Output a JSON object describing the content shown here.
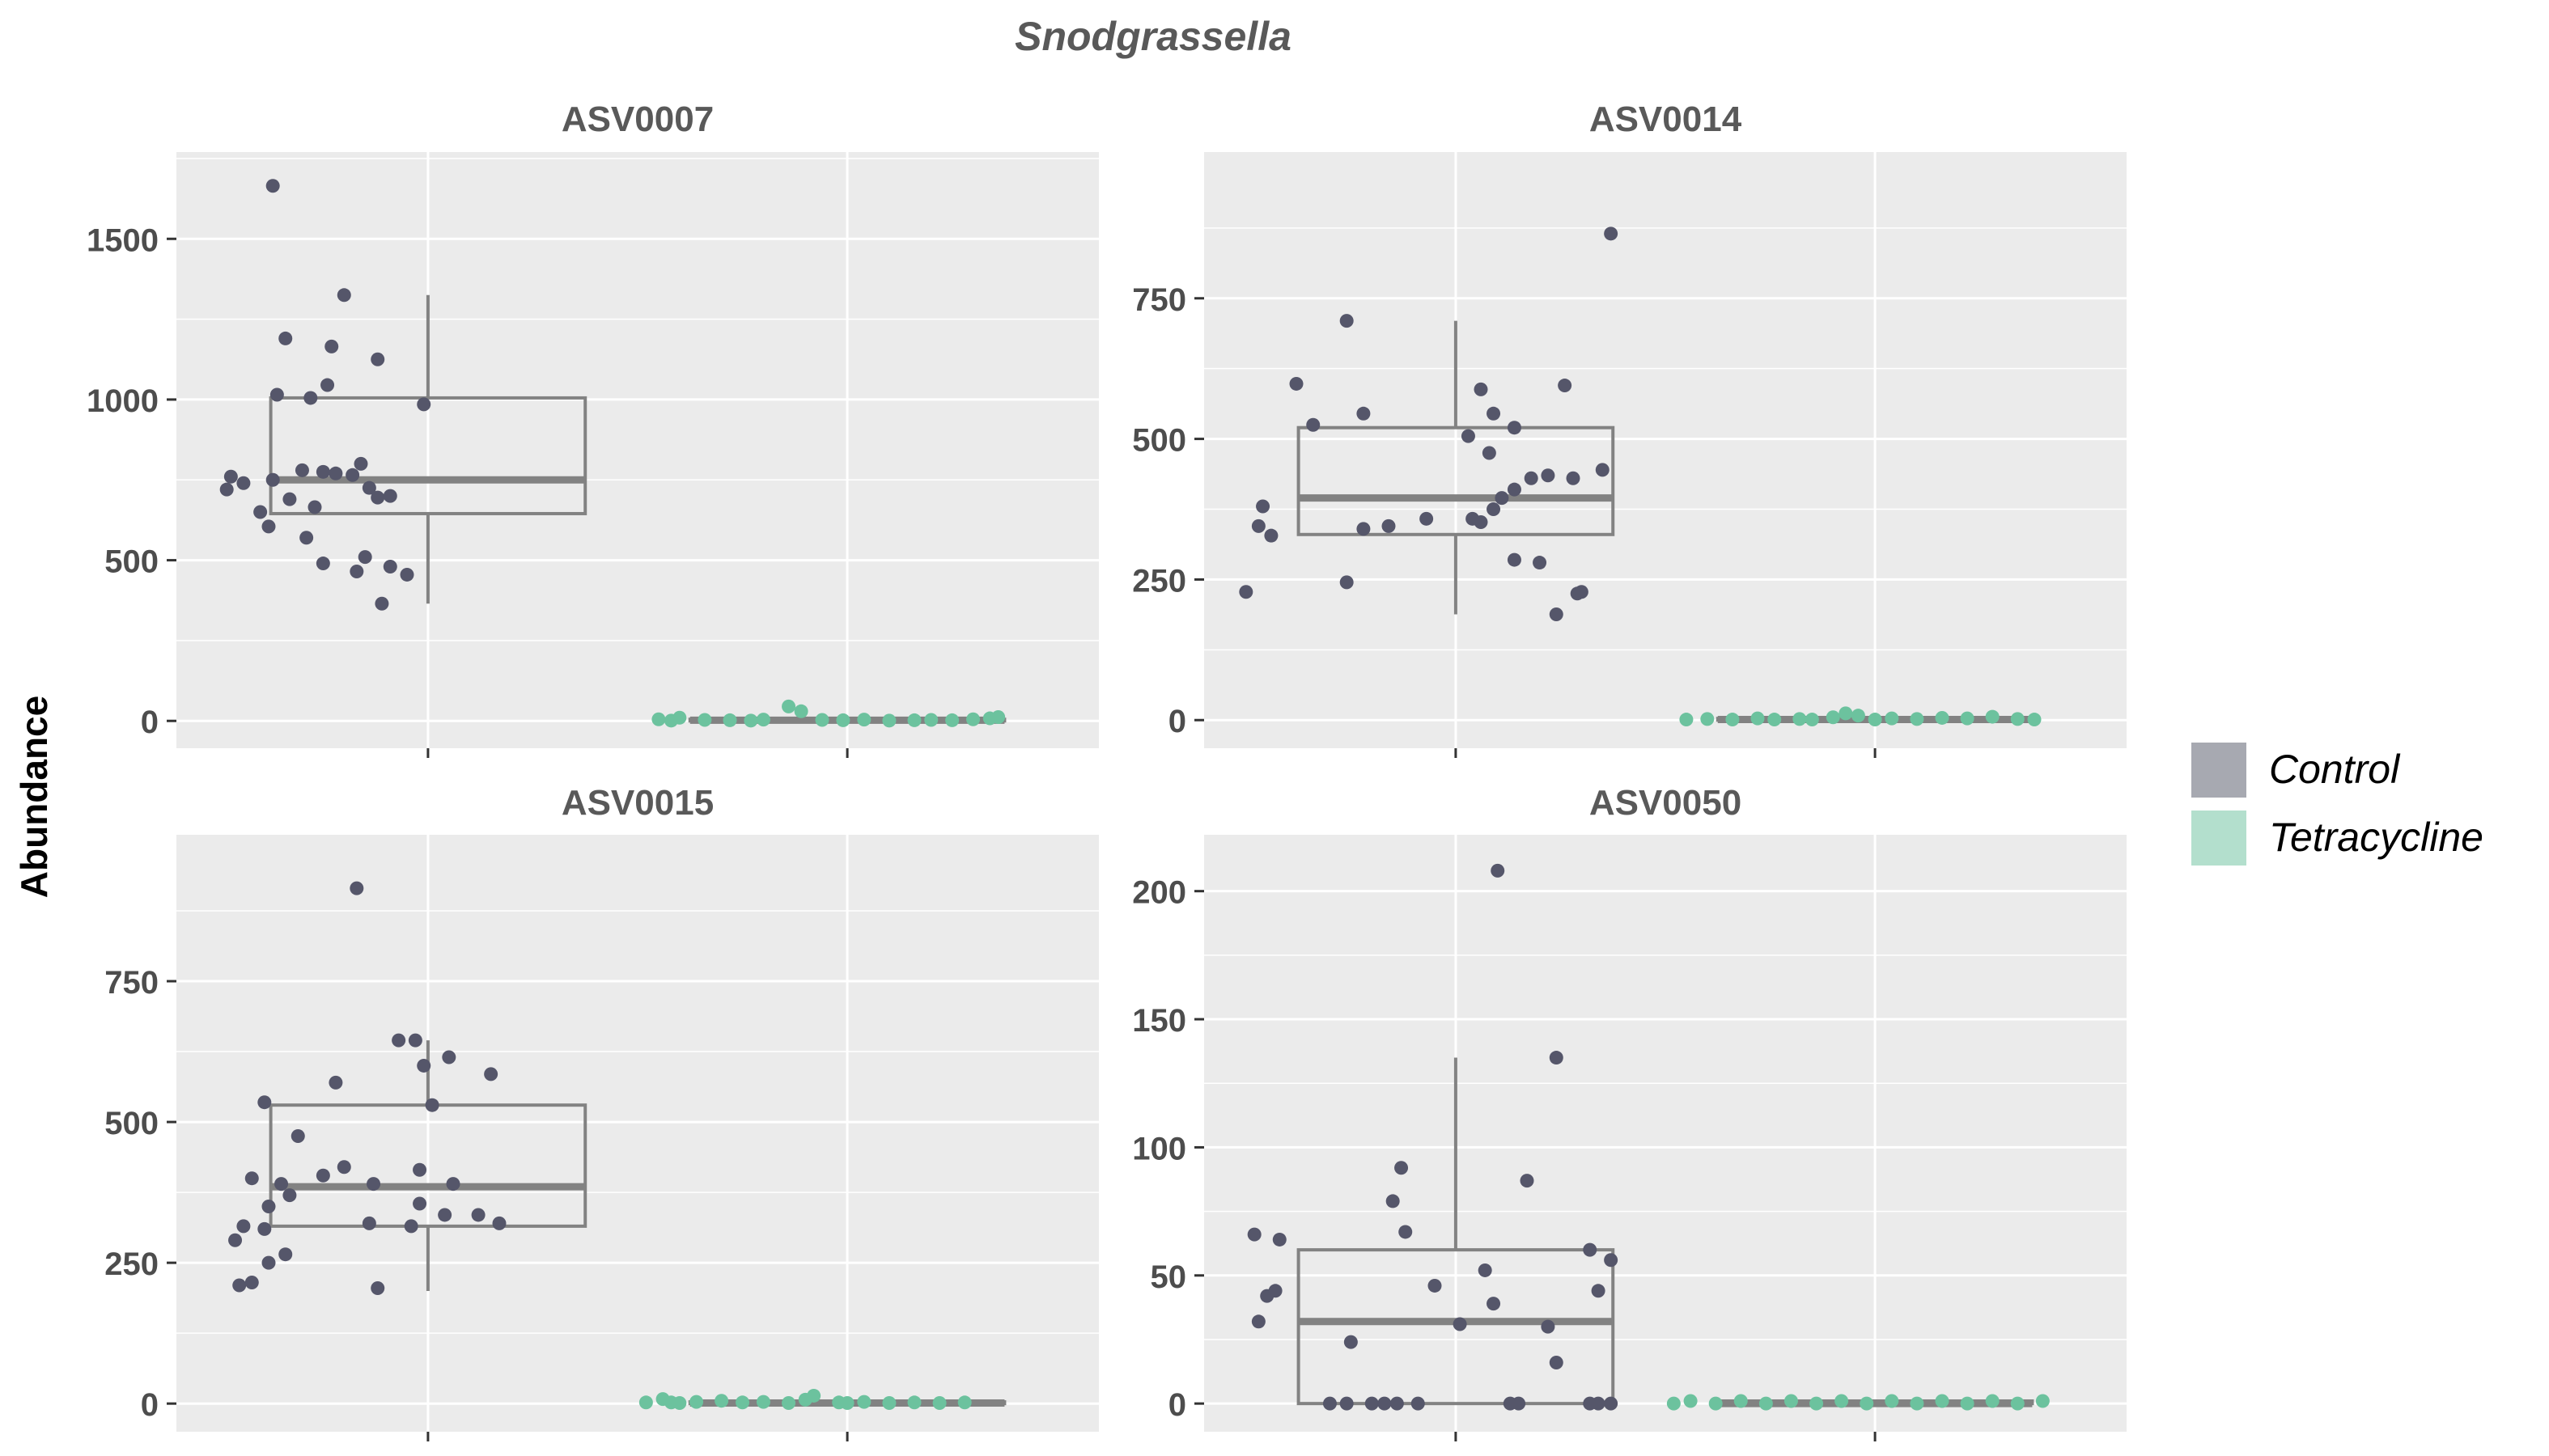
{
  "chart_data": {
    "type": "box",
    "title": "Snodgrassella",
    "ylabel": "Abundance",
    "legend": {
      "position": "right",
      "entries": [
        {
          "label": "Control",
          "color": "#a7a9b1"
        },
        {
          "label": "Tetracycline",
          "color": "#b3dfcd"
        }
      ]
    },
    "colors": {
      "control_points": "#55566a",
      "tetra_points": "#6cc29e",
      "box": "#828282",
      "panel_bg": "#ebebeb",
      "grid": "#ffffff"
    },
    "categories": [
      "Control",
      "Tetracycline"
    ],
    "panels": [
      {
        "title": "ASV0007",
        "ylim": [
          -85,
          1770
        ],
        "yticks": [
          0,
          500,
          1000,
          1500
        ],
        "boxes": [
          {
            "group": "Control",
            "q1": 645,
            "median": 750,
            "q3": 1005,
            "whisker_low": 365,
            "whisker_high": 1325
          },
          {
            "group": "Tetracycline",
            "q1": 0,
            "median": 2,
            "q3": 5,
            "whisker_low": 0,
            "whisker_high": 10
          }
        ],
        "points": {
          "Control": [
            [
              0.63,
              1665
            ],
            [
              0.66,
              1190
            ],
            [
              0.64,
              1015
            ],
            [
              0.77,
              1165
            ],
            [
              0.8,
              1325
            ],
            [
              0.76,
              1045
            ],
            [
              0.72,
              1005
            ],
            [
              0.88,
              1125
            ],
            [
              0.99,
              985
            ],
            [
              0.53,
              760
            ],
            [
              0.56,
              740
            ],
            [
              0.52,
              720
            ],
            [
              0.63,
              750
            ],
            [
              0.7,
              780
            ],
            [
              0.75,
              775
            ],
            [
              0.78,
              770
            ],
            [
              0.84,
              800
            ],
            [
              0.82,
              765
            ],
            [
              0.86,
              725
            ],
            [
              0.88,
              695
            ],
            [
              0.91,
              700
            ],
            [
              0.67,
              690
            ],
            [
              0.6,
              650
            ],
            [
              0.73,
              665
            ],
            [
              0.62,
              605
            ],
            [
              0.71,
              570
            ],
            [
              0.75,
              490
            ],
            [
              0.85,
              510
            ],
            [
              0.83,
              465
            ],
            [
              0.91,
              480
            ],
            [
              0.95,
              455
            ],
            [
              0.89,
              365
            ]
          ],
          "Tetracycline": [
            [
              1.55,
              5
            ],
            [
              1.6,
              10
            ],
            [
              1.66,
              3
            ],
            [
              1.72,
              2
            ],
            [
              1.8,
              4
            ],
            [
              1.86,
              45
            ],
            [
              1.89,
              30
            ],
            [
              1.94,
              3
            ],
            [
              1.99,
              2
            ],
            [
              2.04,
              4
            ],
            [
              2.1,
              1
            ],
            [
              2.16,
              2
            ],
            [
              2.2,
              3
            ],
            [
              2.25,
              2
            ],
            [
              2.3,
              5
            ],
            [
              2.34,
              8
            ],
            [
              2.36,
              12
            ],
            [
              1.58,
              1
            ],
            [
              1.77,
              1
            ]
          ]
        }
      },
      {
        "title": "ASV0014",
        "ylim": [
          -50,
          1010
        ],
        "yticks": [
          0,
          250,
          500,
          750
        ],
        "boxes": [
          {
            "group": "Control",
            "q1": 330,
            "median": 395,
            "q3": 520,
            "whisker_low": 188,
            "whisker_high": 710
          },
          {
            "group": "Tetracycline",
            "q1": 0,
            "median": 1,
            "q3": 3,
            "whisker_low": 0,
            "whisker_high": 6
          }
        ],
        "points": {
          "Control": [
            [
              1.37,
              865
            ],
            [
              0.74,
              710
            ],
            [
              0.62,
              598
            ],
            [
              0.66,
              525
            ],
            [
              0.78,
              545
            ],
            [
              1.06,
              588
            ],
            [
              1.09,
              545
            ],
            [
              1.14,
              520
            ],
            [
              1.26,
              595
            ],
            [
              0.54,
              380
            ],
            [
              0.53,
              345
            ],
            [
              0.56,
              328
            ],
            [
              1.03,
              505
            ],
            [
              1.08,
              475
            ],
            [
              1.18,
              430
            ],
            [
              1.22,
              435
            ],
            [
              1.28,
              430
            ],
            [
              1.35,
              445
            ],
            [
              1.14,
              410
            ],
            [
              1.11,
              395
            ],
            [
              1.09,
              375
            ],
            [
              0.78,
              340
            ],
            [
              0.84,
              345
            ],
            [
              0.93,
              358
            ],
            [
              1.04,
              358
            ],
            [
              1.06,
              352
            ],
            [
              0.74,
              245
            ],
            [
              1.14,
              285
            ],
            [
              1.2,
              280
            ],
            [
              1.29,
              225
            ],
            [
              1.3,
              228
            ],
            [
              0.5,
              228
            ],
            [
              1.24,
              188
            ]
          ],
          "Tetracycline": [
            [
              1.55,
              1
            ],
            [
              1.6,
              2
            ],
            [
              1.66,
              1
            ],
            [
              1.72,
              3
            ],
            [
              1.76,
              1
            ],
            [
              1.82,
              2
            ],
            [
              1.9,
              5
            ],
            [
              1.93,
              12
            ],
            [
              1.96,
              8
            ],
            [
              2.04,
              3
            ],
            [
              2.1,
              2
            ],
            [
              2.16,
              4
            ],
            [
              2.22,
              3
            ],
            [
              2.28,
              6
            ],
            [
              2.34,
              2
            ],
            [
              2.38,
              1
            ],
            [
              1.85,
              1
            ],
            [
              2.0,
              1
            ]
          ]
        }
      },
      {
        "title": "ASV0015",
        "ylim": [
          -50,
          1010
        ],
        "yticks": [
          0,
          250,
          500,
          750
        ],
        "boxes": [
          {
            "group": "Control",
            "q1": 315,
            "median": 385,
            "q3": 530,
            "whisker_low": 200,
            "whisker_high": 645
          },
          {
            "group": "Tetracycline",
            "q1": 0,
            "median": 1,
            "q3": 3,
            "whisker_low": 0,
            "whisker_high": 6
          }
        ],
        "points": {
          "Control": [
            [
              0.83,
              915
            ],
            [
              0.78,
              570
            ],
            [
              0.61,
              535
            ],
            [
              0.93,
              645
            ],
            [
              0.97,
              645
            ],
            [
              0.99,
              600
            ],
            [
              1.05,
              615
            ],
            [
              1.15,
              585
            ],
            [
              0.69,
              475
            ],
            [
              0.54,
              290
            ],
            [
              0.58,
              400
            ],
            [
              0.56,
              315
            ],
            [
              0.61,
              310
            ],
            [
              0.62,
              250
            ],
            [
              0.66,
              265
            ],
            [
              0.65,
              390
            ],
            [
              0.67,
              370
            ],
            [
              0.62,
              350
            ],
            [
              0.75,
              405
            ],
            [
              0.8,
              420
            ],
            [
              0.87,
              390
            ],
            [
              0.98,
              415
            ],
            [
              1.06,
              390
            ],
            [
              1.04,
              335
            ],
            [
              1.12,
              335
            ],
            [
              1.17,
              320
            ],
            [
              0.86,
              320
            ],
            [
              0.96,
              315
            ],
            [
              0.98,
              355
            ],
            [
              1.01,
              530
            ],
            [
              0.55,
              210
            ],
            [
              0.58,
              215
            ],
            [
              0.88,
              205
            ]
          ],
          "Tetracycline": [
            [
              1.52,
              2
            ],
            [
              1.56,
              8
            ],
            [
              1.6,
              1
            ],
            [
              1.64,
              3
            ],
            [
              1.7,
              5
            ],
            [
              1.75,
              2
            ],
            [
              1.8,
              3
            ],
            [
              1.86,
              1
            ],
            [
              1.9,
              7
            ],
            [
              1.92,
              14
            ],
            [
              1.98,
              2
            ],
            [
              2.04,
              3
            ],
            [
              2.1,
              1
            ],
            [
              2.16,
              2
            ],
            [
              2.22,
              1
            ],
            [
              2.28,
              2
            ],
            [
              1.58,
              2
            ],
            [
              2.0,
              1
            ]
          ]
        }
      },
      {
        "title": "ASV0050",
        "ylim": [
          -11,
          222
        ],
        "yticks": [
          0,
          50,
          100,
          150,
          200
        ],
        "boxes": [
          {
            "group": "Control",
            "q1": 0,
            "median": 32,
            "q3": 60,
            "whisker_low": 0,
            "whisker_high": 135
          },
          {
            "group": "Tetracycline",
            "q1": 0,
            "median": 0,
            "q3": 1,
            "whisker_low": 0,
            "whisker_high": 1
          }
        ],
        "points": {
          "Control": [
            [
              1.1,
              208
            ],
            [
              1.24,
              135
            ],
            [
              0.87,
              92
            ],
            [
              0.85,
              79
            ],
            [
              1.17,
              87
            ],
            [
              0.88,
              67
            ],
            [
              0.52,
              66
            ],
            [
              0.58,
              64
            ],
            [
              1.32,
              60
            ],
            [
              1.37,
              56
            ],
            [
              0.95,
              46
            ],
            [
              1.07,
              52
            ],
            [
              0.55,
              42
            ],
            [
              0.57,
              44
            ],
            [
              1.34,
              44
            ],
            [
              1.09,
              39
            ],
            [
              0.75,
              24
            ],
            [
              1.22,
              30
            ],
            [
              1.01,
              31
            ],
            [
              0.53,
              32
            ],
            [
              1.24,
              16
            ],
            [
              0.7,
              0
            ],
            [
              0.74,
              0
            ],
            [
              0.8,
              0
            ],
            [
              0.83,
              0
            ],
            [
              0.86,
              0
            ],
            [
              0.91,
              0
            ],
            [
              1.13,
              0
            ],
            [
              1.15,
              0
            ],
            [
              1.32,
              0
            ],
            [
              1.34,
              0
            ],
            [
              1.37,
              0
            ]
          ],
          "Tetracycline": [
            [
              1.52,
              0
            ],
            [
              1.56,
              1
            ],
            [
              1.62,
              0
            ],
            [
              1.68,
              1
            ],
            [
              1.74,
              0
            ],
            [
              1.8,
              1
            ],
            [
              1.86,
              0
            ],
            [
              1.92,
              1
            ],
            [
              1.98,
              0
            ],
            [
              2.04,
              1
            ],
            [
              2.1,
              0
            ],
            [
              2.16,
              1
            ],
            [
              2.22,
              0
            ],
            [
              2.28,
              1
            ],
            [
              2.34,
              0
            ],
            [
              2.4,
              1
            ]
          ]
        }
      }
    ]
  }
}
